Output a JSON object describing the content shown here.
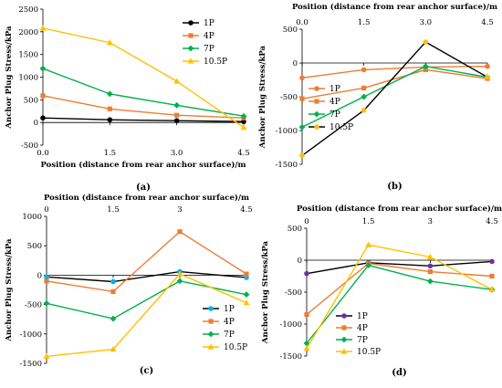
{
  "chart_data": [
    {
      "type": "line",
      "panel_label": "(a)",
      "xlabel": "Position (distance from rear anchor surface)/m",
      "ylabel": "Anchor Plug Stress/kPa",
      "x": [
        0,
        1.5,
        3.0,
        4.5
      ],
      "x_tick_labels": [
        "0.0",
        "1.5",
        "3.0",
        "4.5"
      ],
      "xlim": [
        0,
        4.5
      ],
      "ylim": [
        -500,
        2500
      ],
      "y_ticks": [
        -500,
        0,
        500,
        1000,
        1500,
        2000,
        2500
      ],
      "x_axis_position": "bottom",
      "grid": false,
      "legend_position": "right",
      "series": [
        {
          "name": "1P",
          "color": "#000000",
          "marker": "circle",
          "values": [
            100,
            60,
            40,
            20
          ]
        },
        {
          "name": "4P",
          "color": "#ED7D31",
          "marker": "square",
          "values": [
            590,
            300,
            160,
            100
          ]
        },
        {
          "name": "7P",
          "color": "#00B050",
          "marker": "diamond",
          "values": [
            1190,
            630,
            380,
            140
          ]
        },
        {
          "name": "10.5P",
          "color": "#FFC000",
          "marker": "triangle",
          "values": [
            2080,
            1760,
            910,
            -110
          ]
        }
      ]
    },
    {
      "type": "line",
      "panel_label": "(b)",
      "xlabel": "Position (distance from rear anchor surface)/m",
      "ylabel": "Anchor Plug Stress/kPa",
      "x": [
        0,
        1.5,
        3.0,
        4.5
      ],
      "x_tick_labels": [
        "0.0",
        "1.5",
        "3.0",
        "4.5"
      ],
      "xlim": [
        0,
        4.5
      ],
      "ylim": [
        -1500,
        500
      ],
      "y_ticks": [
        -1500,
        -1000,
        -500,
        0,
        500
      ],
      "x_axis_position": "top",
      "grid": false,
      "legend_position": "left",
      "series": [
        {
          "name": "1P",
          "color": "#ED7D31",
          "marker": "circle",
          "values": [
            -220,
            -100,
            -60,
            -50
          ]
        },
        {
          "name": "4P",
          "color": "#ED7D31",
          "marker": "square",
          "values": [
            -530,
            -370,
            -100,
            -230
          ]
        },
        {
          "name": "7P",
          "color": "#00B050",
          "marker": "diamond",
          "values": [
            -950,
            -500,
            -50,
            -210
          ]
        },
        {
          "name": "10.5P",
          "color": "#000000",
          "marker": "circle-yellow",
          "values": [
            -1370,
            -700,
            310,
            -210
          ]
        }
      ]
    },
    {
      "type": "line",
      "panel_label": "(c)",
      "xlabel": "Position (distance from rear anchor surface)/m",
      "ylabel": "Anchor Plug Stress/kPa",
      "x": [
        0,
        1.5,
        3,
        4.5
      ],
      "x_tick_labels": [
        "0",
        "1.5",
        "3",
        "4.5"
      ],
      "xlim": [
        0,
        4.5
      ],
      "ylim": [
        -1500,
        1000
      ],
      "y_ticks": [
        -1500,
        -1000,
        -500,
        0,
        500,
        1000
      ],
      "x_axis_position": "top",
      "grid": false,
      "legend_position": "bottom-right",
      "series": [
        {
          "name": "1P",
          "color": "#000000",
          "marker": "circle-blue",
          "values": [
            -30,
            -110,
            60,
            -40
          ]
        },
        {
          "name": "4P",
          "color": "#ED7D31",
          "marker": "square",
          "values": [
            -100,
            -280,
            740,
            20
          ]
        },
        {
          "name": "7P",
          "color": "#00B050",
          "marker": "diamond",
          "values": [
            -480,
            -740,
            -100,
            -330
          ]
        },
        {
          "name": "10.5P",
          "color": "#FFC000",
          "marker": "triangle",
          "values": [
            -1380,
            -1260,
            20,
            -470
          ]
        }
      ]
    },
    {
      "type": "line",
      "panel_label": "(d)",
      "xlabel": "Position (distance from rear anchor surface)/m",
      "ylabel": "Anchor Plug Stress/kPa",
      "x": [
        0,
        1.5,
        3,
        4.5
      ],
      "x_tick_labels": [
        "0",
        "1.5",
        "3",
        "4.5"
      ],
      "xlim": [
        0,
        4.5
      ],
      "ylim": [
        -1500,
        500
      ],
      "y_ticks": [
        -1500,
        -1000,
        -500,
        0,
        500
      ],
      "x_axis_position": "top",
      "grid": false,
      "legend_position": "bottom-right",
      "series": [
        {
          "name": "1P",
          "color": "#000000",
          "marker": "circle-purple",
          "values": [
            -210,
            -40,
            -90,
            -20
          ]
        },
        {
          "name": "4P",
          "color": "#ED7D31",
          "marker": "square",
          "values": [
            -850,
            -50,
            -180,
            -250
          ]
        },
        {
          "name": "7P",
          "color": "#00B050",
          "marker": "diamond",
          "values": [
            -1300,
            -80,
            -330,
            -460
          ]
        },
        {
          "name": "10.5P",
          "color": "#FFC000",
          "marker": "triangle",
          "values": [
            -1380,
            240,
            50,
            -460
          ]
        }
      ]
    }
  ]
}
